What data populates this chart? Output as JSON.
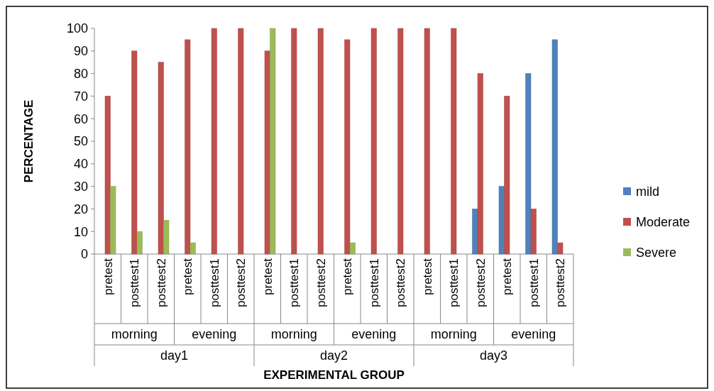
{
  "chart_data": {
    "type": "bar",
    "ylabel": "PERCENTAGE",
    "categories": [
      "pretest",
      "posttest1",
      "posttest2",
      "pretest",
      "posttest1",
      "posttest2",
      "pretest",
      "posttest1",
      "posttest2",
      "pretest",
      "posttest1",
      "posttest2",
      "pretest",
      "posttest1",
      "posttest2",
      "pretest",
      "posttest1",
      "posttest2"
    ],
    "series": [
      {
        "name": "mild",
        "color": "#4f81bd",
        "values": [
          0,
          0,
          0,
          0,
          0,
          0,
          0,
          0,
          0,
          0,
          0,
          0,
          0,
          0,
          20,
          30,
          80,
          95
        ]
      },
      {
        "name": "Moderate",
        "color": "#c0504d",
        "values": [
          70,
          90,
          85,
          95,
          100,
          100,
          90,
          100,
          100,
          95,
          100,
          100,
          100,
          100,
          80,
          70,
          20,
          5
        ]
      },
      {
        "name": "Severe",
        "color": "#9bbb59",
        "values": [
          30,
          10,
          15,
          5,
          0,
          0,
          100,
          0,
          0,
          5,
          0,
          0,
          0,
          0,
          0,
          0,
          0,
          0
        ]
      }
    ],
    "annotations": [
      "morning",
      "evening",
      "morning",
      "evening",
      "morning",
      "evening",
      "day1",
      "day2",
      "day3",
      "EXPERIMENTAL GROUP"
    ],
    "ylim": [
      0,
      100
    ],
    "yticks": [
      0,
      10,
      20,
      30,
      40,
      50,
      60,
      70,
      80,
      90,
      100
    ],
    "legend": "right",
    "grid": false
  }
}
